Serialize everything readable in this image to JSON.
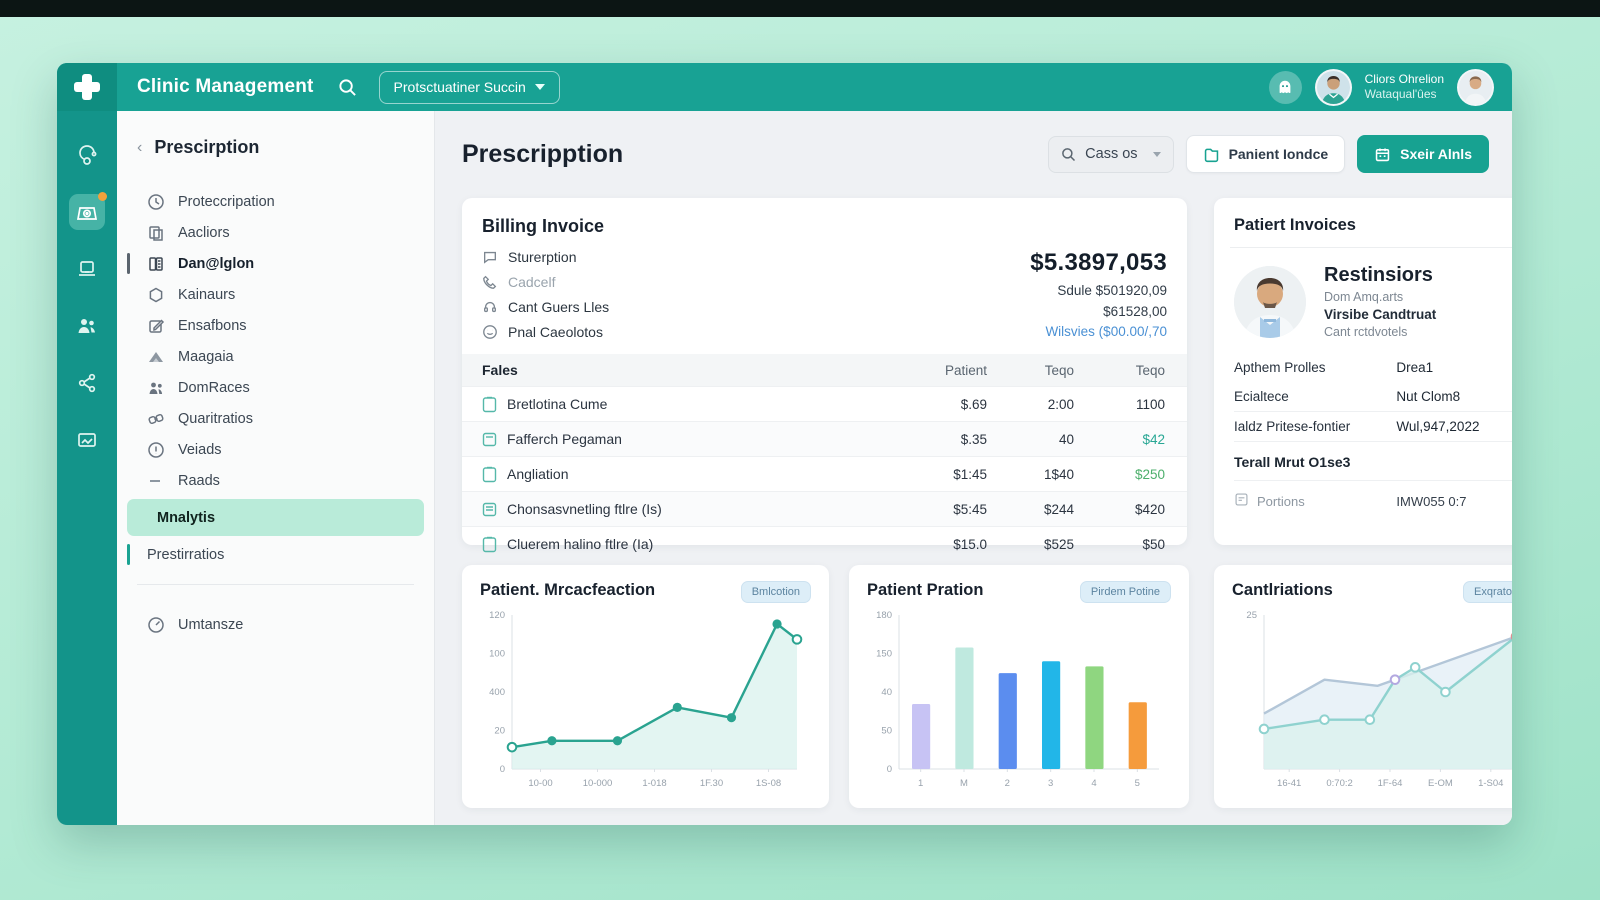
{
  "topbar": {
    "app_title": "Clinic Management",
    "dropdown_label": "Protsctuatiner Succin",
    "user_name": "Cliors Ohrelion",
    "user_sub": "Wataqual'ûes"
  },
  "sidebar": {
    "back_label": "Prescirption",
    "items": [
      {
        "label": "Proteccripation",
        "icon": "clock"
      },
      {
        "label": "Aacliors",
        "icon": "copy"
      },
      {
        "label": "Dan@lglon",
        "icon": "book",
        "bold": true
      },
      {
        "label": "Kainaurs",
        "icon": "hexagon"
      },
      {
        "label": "Ensafbons",
        "icon": "edit"
      },
      {
        "label": "Maagaia",
        "icon": "mountain"
      },
      {
        "label": "DomRaces",
        "icon": "users"
      },
      {
        "label": "Quaritratios",
        "icon": "link"
      },
      {
        "label": "Veiads",
        "icon": "info"
      },
      {
        "label": "Raads",
        "icon": "dash"
      },
      {
        "label": "Mnalytis",
        "active": true
      },
      {
        "label": "Prestirratios",
        "teal_bar": true
      },
      {
        "label": "Umtansze",
        "icon": "timer"
      }
    ]
  },
  "main": {
    "page_title": "Prescripption",
    "search_value": "Cass os",
    "secondary_button": "Panient Iondce",
    "primary_button": "Sxeir Alnls"
  },
  "billing": {
    "title": "Billing Invoice",
    "items": [
      {
        "label": "Sturerption",
        "icon": "chat"
      },
      {
        "label": "Cadcelf",
        "icon": "phone"
      },
      {
        "label": "Cant Guers Lles",
        "icon": "headset"
      },
      {
        "label": "Pnal Caeolotos",
        "icon": "smiley"
      }
    ],
    "total": "$5.3897,053",
    "sub_line1": "Sdule $501920,09",
    "sub_line2": "$61528,00",
    "link_line": "Wilsvies ($00.00/,70",
    "table": {
      "headers": [
        "Fales",
        "Patient",
        "Teqo",
        "Teqo"
      ],
      "rows": [
        {
          "name": "Bretlotina Cume",
          "c1": "$.69",
          "c2": "2:00",
          "c3": "1100"
        },
        {
          "name": "Fafferch Pegaman",
          "c1": "$.35",
          "c2": "40",
          "c3": "$42"
        },
        {
          "name": "Angliation",
          "c1": "$1:45",
          "c2": "1$40",
          "c3": "$250"
        },
        {
          "name": "Chonsasvnetling ftlre (Is)",
          "c1": "$5:45",
          "c2": "$244",
          "c3": "$420"
        },
        {
          "name": "Cluerem halino ftlre (Ia)",
          "c1": "$15.0",
          "c2": "$525",
          "c3": "$50"
        }
      ]
    }
  },
  "patient_card": {
    "title": "Patiert Invoices",
    "name": "Restinsiors",
    "sub1": "Dom Amq.arts",
    "sub2": "Virsibe Candtruat",
    "sub3": "Cant rctdvotels",
    "kv": [
      {
        "k": "Apthem Prolles",
        "v": "Drea1"
      },
      {
        "k": "Ecialtece",
        "v": "Nut Clom8"
      },
      {
        "k": "Ialdz Pritese-fontier",
        "v": "Wul,947,2022"
      }
    ],
    "total_line": "Terall Mrut O1se3",
    "footer_label": "Portions",
    "footer_value": "IMW055 0:7"
  },
  "chart_data": [
    {
      "type": "line",
      "title": "Patient. Mrcacfeaction",
      "badge": "Bmlcotion",
      "y_ticks": [
        "120",
        "100",
        "400",
        "20",
        "0"
      ],
      "ylim": [
        0,
        120
      ],
      "x_labels": [
        "10-00",
        "10-000",
        "1-018",
        "1F.30",
        "1S-08"
      ],
      "series": [
        {
          "name": "patients",
          "color": "#2aa390",
          "fill": "#daf1ee",
          "points": [
            {
              "x": 0,
              "v": 17,
              "mt": "open"
            },
            {
              "x": 0.14,
              "v": 22,
              "mt": "dot"
            },
            {
              "x": 0.37,
              "v": 22,
              "mt": "dot"
            },
            {
              "x": 0.58,
              "v": 48,
              "mt": "dot"
            },
            {
              "x": 0.77,
              "v": 40,
              "mt": "dot"
            },
            {
              "x": 0.93,
              "v": 113,
              "mt": "dot"
            },
            {
              "x": 1,
              "v": 101,
              "mt": "open"
            }
          ]
        }
      ]
    },
    {
      "type": "bar",
      "title": "Patient Pration",
      "badge": "Pirdem Potine",
      "y_ticks": [
        "180",
        "150",
        "40",
        "50",
        "0"
      ],
      "ylim": [
        0,
        180
      ],
      "x_labels": [
        "1",
        "M",
        "2",
        "3",
        "4",
        "5"
      ],
      "values": [
        76,
        142,
        112,
        126,
        120,
        78
      ],
      "colors": [
        "#c7c3f4",
        "#bfe9df",
        "#5b8def",
        "#22b6e8",
        "#8fd680",
        "#f59b3c"
      ]
    },
    {
      "type": "line",
      "title": "Cantlriations",
      "badge": "Exqratof",
      "y_ticks": [
        "25"
      ],
      "ylim": [
        0,
        25
      ],
      "x_labels": [
        "16-41",
        "0:70:2",
        "1F-64",
        "E-OM",
        "1-S04"
      ],
      "series": [
        {
          "name": "series-a",
          "color": "#b3c6d8",
          "fill": "#e2eef6",
          "points": [
            {
              "x": 0,
              "v": 9
            },
            {
              "x": 0.24,
              "v": 14.5
            },
            {
              "x": 0.45,
              "v": 13.5
            },
            {
              "x": 0.52,
              "v": 14.5,
              "mt": "dot",
              "mc": "#b3a8e0"
            },
            {
              "x": 1,
              "v": 21.5,
              "mt": "dot",
              "mc": "#de8f8f"
            }
          ]
        },
        {
          "name": "series-b",
          "color": "#8fd2cf",
          "fill": "#d9f1ee",
          "points": [
            {
              "x": 0,
              "v": 6.5,
              "mt": "open"
            },
            {
              "x": 0.24,
              "v": 8,
              "mt": "open"
            },
            {
              "x": 0.42,
              "v": 8,
              "mt": "open"
            },
            {
              "x": 0.52,
              "v": 14.5,
              "mt": "open",
              "mc": "#b3a8e0"
            },
            {
              "x": 0.6,
              "v": 16.5,
              "mt": "open"
            },
            {
              "x": 0.72,
              "v": 12.5,
              "mt": "open"
            },
            {
              "x": 1,
              "v": 21.5,
              "mt": "open",
              "mc": "#de8f8f"
            }
          ]
        }
      ]
    }
  ]
}
